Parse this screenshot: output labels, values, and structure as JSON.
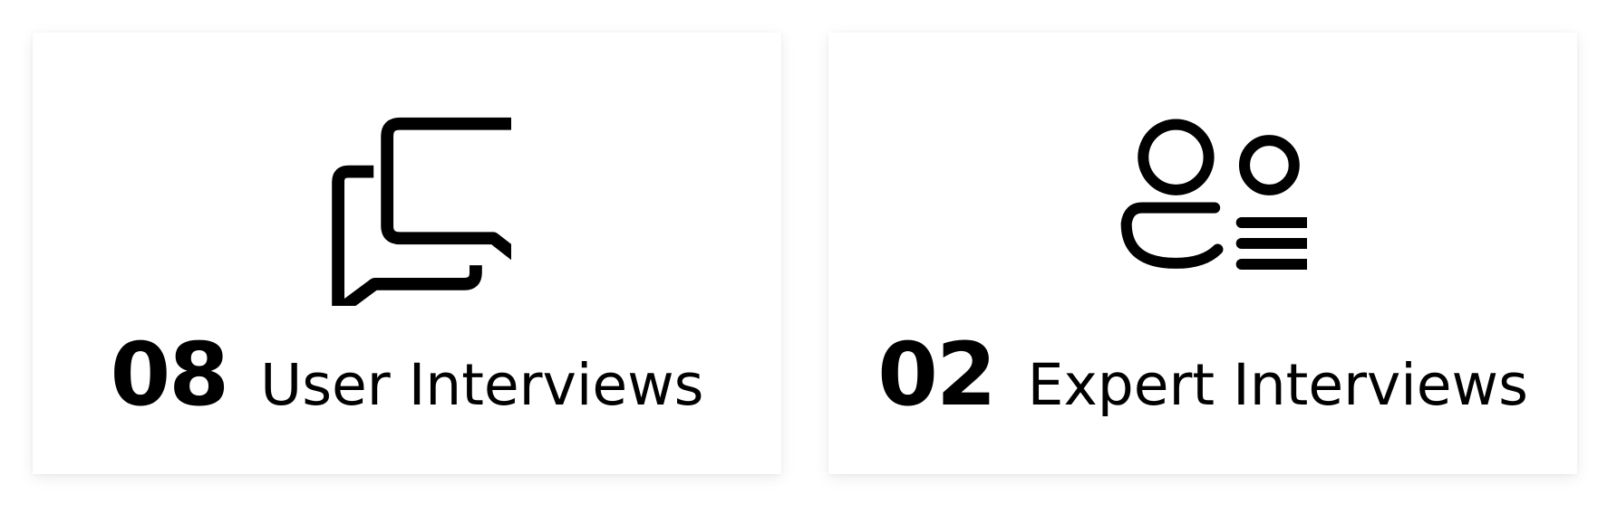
{
  "cards": [
    {
      "count": "08",
      "label": "User Interviews",
      "icon": "chat-bubbles-icon"
    },
    {
      "count": "02",
      "label": "Expert Interviews",
      "icon": "users-list-icon"
    }
  ],
  "colors": {
    "text": "#000000",
    "card_bg": "#ffffff",
    "page_bg": "#ffffff"
  }
}
